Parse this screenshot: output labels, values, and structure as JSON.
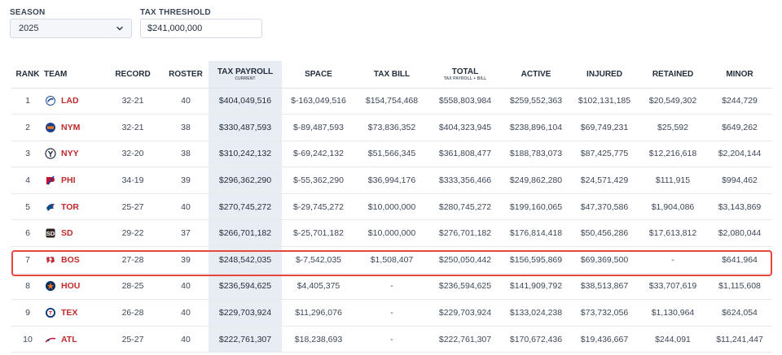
{
  "filters": {
    "season_label": "SEASON",
    "season_value": "2025",
    "threshold_label": "TAX THRESHOLD",
    "threshold_value": "$241,000,000"
  },
  "table": {
    "headers": {
      "rank": "RANK",
      "team": "TEAM",
      "record": "RECORD",
      "roster": "ROSTER",
      "tax_payroll": "TAX PAYROLL",
      "tax_payroll_sub": "CURRENT",
      "space": "SPACE",
      "tax_bill": "TAX BILL",
      "total": "TOTAL",
      "total_sub": "TAX PAYROLL + BILL",
      "active": "ACTIVE",
      "injured": "INJURED",
      "retained": "RETAINED",
      "minor": "MINOR"
    },
    "rows": [
      {
        "rank": "1",
        "team": "LAD",
        "record": "32-21",
        "roster": "40",
        "tax_payroll": "$404,049,516",
        "space": "$-163,049,516",
        "tax_bill": "$154,754,468",
        "total": "$558,803,984",
        "active": "$259,552,363",
        "injured": "$102,131,185",
        "retained": "$20,549,302",
        "minor": "$244,729"
      },
      {
        "rank": "2",
        "team": "NYM",
        "record": "32-21",
        "roster": "38",
        "tax_payroll": "$330,487,593",
        "space": "$-89,487,593",
        "tax_bill": "$73,836,352",
        "total": "$404,323,945",
        "active": "$238,896,104",
        "injured": "$69,749,231",
        "retained": "$25,592",
        "minor": "$649,262"
      },
      {
        "rank": "3",
        "team": "NYY",
        "record": "32-20",
        "roster": "38",
        "tax_payroll": "$310,242,132",
        "space": "$-69,242,132",
        "tax_bill": "$51,566,345",
        "total": "$361,808,477",
        "active": "$188,783,073",
        "injured": "$87,425,775",
        "retained": "$12,216,618",
        "minor": "$2,204,144"
      },
      {
        "rank": "4",
        "team": "PHI",
        "record": "34-19",
        "roster": "39",
        "tax_payroll": "$296,362,290",
        "space": "$-55,362,290",
        "tax_bill": "$36,994,176",
        "total": "$333,356,466",
        "active": "$249,862,280",
        "injured": "$24,571,429",
        "retained": "$111,915",
        "minor": "$994,462"
      },
      {
        "rank": "5",
        "team": "TOR",
        "record": "25-27",
        "roster": "40",
        "tax_payroll": "$270,745,272",
        "space": "$-29,745,272",
        "tax_bill": "$10,000,000",
        "total": "$280,745,272",
        "active": "$199,160,065",
        "injured": "$47,370,586",
        "retained": "$1,904,086",
        "minor": "$3,143,869"
      },
      {
        "rank": "6",
        "team": "SD",
        "record": "29-22",
        "roster": "37",
        "tax_payroll": "$266,701,182",
        "space": "$-25,701,182",
        "tax_bill": "$10,000,000",
        "total": "$276,701,182",
        "active": "$176,814,418",
        "injured": "$50,456,286",
        "retained": "$17,613,812",
        "minor": "$2,080,044"
      },
      {
        "rank": "7",
        "team": "BOS",
        "record": "27-28",
        "roster": "39",
        "tax_payroll": "$248,542,035",
        "space": "$-7,542,035",
        "tax_bill": "$1,508,407",
        "total": "$250,050,442",
        "active": "$156,595,869",
        "injured": "$69,369,500",
        "retained": "-",
        "minor": "$641,964"
      },
      {
        "rank": "8",
        "team": "HOU",
        "record": "28-25",
        "roster": "40",
        "tax_payroll": "$236,594,625",
        "space": "$4,405,375",
        "tax_bill": "-",
        "total": "$236,594,625",
        "active": "$141,909,792",
        "injured": "$38,513,867",
        "retained": "$33,707,619",
        "minor": "$1,115,608"
      },
      {
        "rank": "9",
        "team": "TEX",
        "record": "26-28",
        "roster": "40",
        "tax_payroll": "$229,703,924",
        "space": "$11,296,076",
        "tax_bill": "-",
        "total": "$229,703,924",
        "active": "$133,024,238",
        "injured": "$73,732,056",
        "retained": "$1,130,964",
        "minor": "$624,054"
      },
      {
        "rank": "10",
        "team": "ATL",
        "record": "25-27",
        "roster": "40",
        "tax_payroll": "$222,761,307",
        "space": "$18,238,693",
        "tax_bill": "-",
        "total": "$222,761,307",
        "active": "$170,672,436",
        "injured": "$19,436,667",
        "retained": "$244,091",
        "minor": "$11,241,447"
      }
    ]
  },
  "colors": {
    "team_text": "#bf2a2a",
    "highlight_border": "#e8463b",
    "payroll_column_bg": "#e8edf4"
  },
  "icons": {
    "season_dropdown": "chevron-down-icon",
    "team_logos": [
      "dodgers-logo-icon",
      "mets-logo-icon",
      "yankees-logo-icon",
      "phillies-logo-icon",
      "blue-jays-logo-icon",
      "padres-logo-icon",
      "red-sox-logo-icon",
      "astros-logo-icon",
      "rangers-logo-icon",
      "braves-logo-icon"
    ]
  }
}
